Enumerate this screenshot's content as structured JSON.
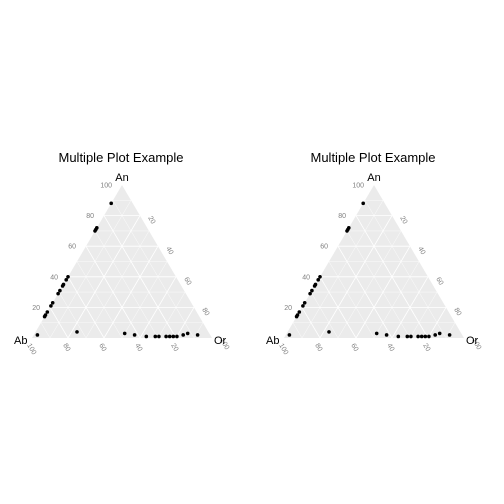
{
  "colors": {
    "panel": "#ebebeb",
    "grid": "#ffffff",
    "point": "#000000",
    "tick_text": "#7f7f7f",
    "text": "#000000"
  },
  "chart_data": [
    {
      "type": "scatter",
      "subtype": "ternary",
      "title": "Multiple Plot Example",
      "axes": {
        "top": "An",
        "left": "Ab",
        "right": "Or"
      },
      "ticks": {
        "an": [
          "20",
          "40",
          "60",
          "80",
          "100"
        ],
        "or": [
          "20",
          "40",
          "60",
          "80",
          "100"
        ],
        "ab": [
          "20",
          "40",
          "60",
          "80",
          "100"
        ]
      },
      "grid": true,
      "points": [
        {
          "an": 88,
          "or": 0,
          "ab": 12
        },
        {
          "an": 72,
          "or": 0,
          "ab": 28
        },
        {
          "an": 71,
          "or": 0,
          "ab": 29
        },
        {
          "an": 70,
          "or": 0,
          "ab": 30
        },
        {
          "an": 40,
          "or": 0,
          "ab": 60
        },
        {
          "an": 38,
          "or": 0,
          "ab": 62
        },
        {
          "an": 35,
          "or": 0,
          "ab": 65
        },
        {
          "an": 34,
          "or": 0,
          "ab": 66
        },
        {
          "an": 31,
          "or": 0,
          "ab": 69
        },
        {
          "an": 29,
          "or": 0,
          "ab": 71
        },
        {
          "an": 23,
          "or": 0,
          "ab": 77
        },
        {
          "an": 21,
          "or": 0,
          "ab": 79
        },
        {
          "an": 17,
          "or": 0,
          "ab": 83
        },
        {
          "an": 15,
          "or": 0,
          "ab": 85
        },
        {
          "an": 14,
          "or": 0,
          "ab": 86
        },
        {
          "an": 4,
          "or": 23,
          "ab": 73
        },
        {
          "an": 2,
          "or": 2,
          "ab": 96
        },
        {
          "an": 3,
          "or": 50,
          "ab": 47
        },
        {
          "an": 2,
          "or": 56,
          "ab": 42
        },
        {
          "an": 1,
          "or": 63,
          "ab": 36
        },
        {
          "an": 1,
          "or": 68,
          "ab": 31
        },
        {
          "an": 1,
          "or": 70,
          "ab": 29
        },
        {
          "an": 1,
          "or": 74,
          "ab": 25
        },
        {
          "an": 1,
          "or": 76,
          "ab": 23
        },
        {
          "an": 1,
          "or": 78,
          "ab": 21
        },
        {
          "an": 1,
          "or": 80,
          "ab": 19
        },
        {
          "an": 2,
          "or": 83,
          "ab": 15
        },
        {
          "an": 3,
          "or": 85,
          "ab": 12
        },
        {
          "an": 2,
          "or": 91,
          "ab": 7
        }
      ]
    },
    {
      "type": "scatter",
      "subtype": "ternary",
      "title": "Multiple Plot Example",
      "axes": {
        "top": "An",
        "left": "Ab",
        "right": "Or"
      },
      "ticks": {
        "an": [
          "20",
          "40",
          "60",
          "80",
          "100"
        ],
        "or": [
          "20",
          "40",
          "60",
          "80",
          "100"
        ],
        "ab": [
          "20",
          "40",
          "60",
          "80",
          "100"
        ]
      },
      "grid": true,
      "points": [
        {
          "an": 88,
          "or": 0,
          "ab": 12
        },
        {
          "an": 72,
          "or": 0,
          "ab": 28
        },
        {
          "an": 71,
          "or": 0,
          "ab": 29
        },
        {
          "an": 70,
          "or": 0,
          "ab": 30
        },
        {
          "an": 40,
          "or": 0,
          "ab": 60
        },
        {
          "an": 38,
          "or": 0,
          "ab": 62
        },
        {
          "an": 35,
          "or": 0,
          "ab": 65
        },
        {
          "an": 34,
          "or": 0,
          "ab": 66
        },
        {
          "an": 31,
          "or": 0,
          "ab": 69
        },
        {
          "an": 29,
          "or": 0,
          "ab": 71
        },
        {
          "an": 23,
          "or": 0,
          "ab": 77
        },
        {
          "an": 21,
          "or": 0,
          "ab": 79
        },
        {
          "an": 17,
          "or": 0,
          "ab": 83
        },
        {
          "an": 15,
          "or": 0,
          "ab": 85
        },
        {
          "an": 14,
          "or": 0,
          "ab": 86
        },
        {
          "an": 4,
          "or": 23,
          "ab": 73
        },
        {
          "an": 2,
          "or": 2,
          "ab": 96
        },
        {
          "an": 3,
          "or": 50,
          "ab": 47
        },
        {
          "an": 2,
          "or": 56,
          "ab": 42
        },
        {
          "an": 1,
          "or": 63,
          "ab": 36
        },
        {
          "an": 1,
          "or": 68,
          "ab": 31
        },
        {
          "an": 1,
          "or": 70,
          "ab": 29
        },
        {
          "an": 1,
          "or": 74,
          "ab": 25
        },
        {
          "an": 1,
          "or": 76,
          "ab": 23
        },
        {
          "an": 1,
          "or": 78,
          "ab": 21
        },
        {
          "an": 1,
          "or": 80,
          "ab": 19
        },
        {
          "an": 2,
          "or": 83,
          "ab": 15
        },
        {
          "an": 3,
          "or": 85,
          "ab": 12
        },
        {
          "an": 2,
          "or": 91,
          "ab": 7
        }
      ]
    }
  ]
}
